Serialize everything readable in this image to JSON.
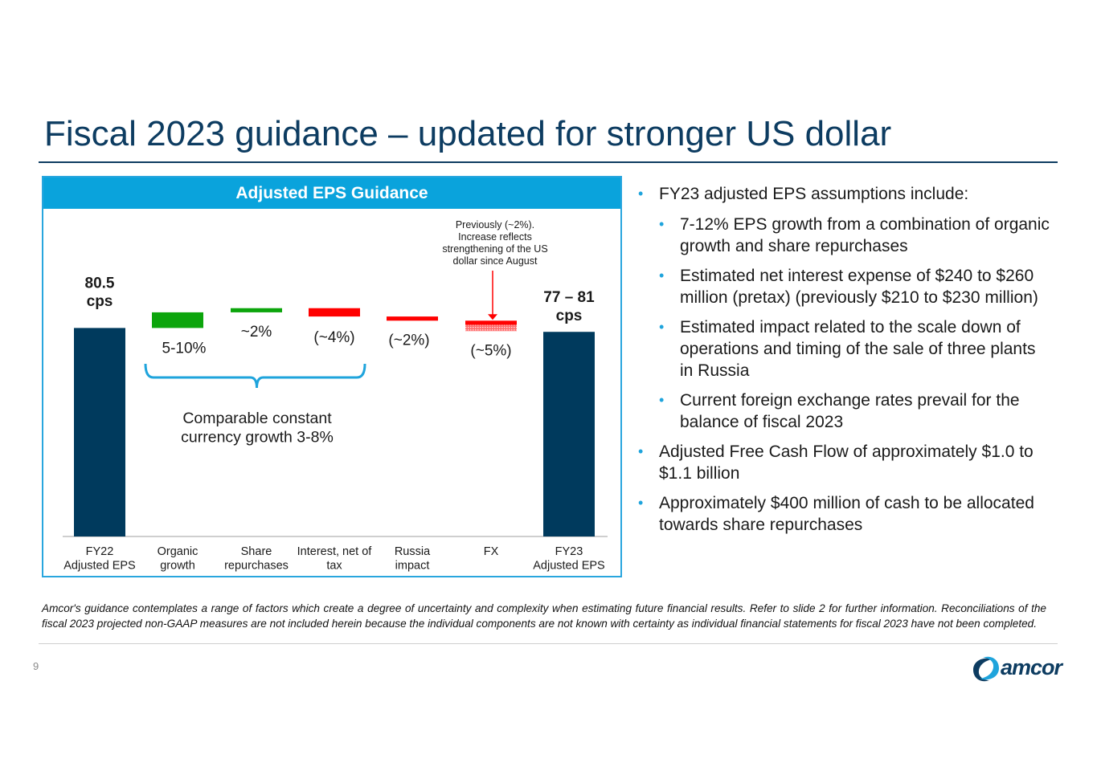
{
  "slide": {
    "title": "Fiscal 2023 guidance – updated for stronger US dollar",
    "page_number": "9"
  },
  "chart_panel": {
    "header": "Adjusted EPS Guidance"
  },
  "chart_data": {
    "type": "bar",
    "subtype": "waterfall",
    "title": "Adjusted EPS Guidance",
    "categories": [
      "FY22\nAdjusted EPS",
      "Organic\ngrowth",
      "Share\nrepurchases",
      "Interest, net of\ntax",
      "Russia\nimpact",
      "FX",
      "FY23\nAdjusted EPS"
    ],
    "bars": [
      {
        "kind": "total",
        "label": "80.5\ncps",
        "value": 80.5,
        "color": "#003a5d"
      },
      {
        "kind": "increase",
        "label": "5-10%",
        "pct": 7.5,
        "color": "#0ca50c"
      },
      {
        "kind": "increase",
        "label": "~2%",
        "pct": 2,
        "color": "#0ca50c"
      },
      {
        "kind": "decrease",
        "label": "(~4%)",
        "pct": -4,
        "color": "#ff0000"
      },
      {
        "kind": "decrease",
        "label": "(~2%)",
        "pct": -2,
        "color": "#ff0000"
      },
      {
        "kind": "decrease",
        "label": "(~5%)",
        "pct": -5,
        "color": "#ff0000",
        "hatched_portion_pct": -3
      },
      {
        "kind": "total",
        "label": "77 – 81\ncps",
        "range": [
          77,
          81
        ],
        "color": "#003a5d"
      }
    ],
    "annotations": {
      "fx_note": "Previously (~2%).\nIncrease reflects\nstrengthening of the US\ndollar since August",
      "bracket_label": "Comparable constant\ncurrency growth 3-8%"
    },
    "colors": {
      "bracket": "#1fa4dc",
      "axis": "#bfbfbf"
    }
  },
  "bullets": [
    {
      "level": 1,
      "text": "FY23 adjusted EPS assumptions include:"
    },
    {
      "level": 2,
      "text": "7-12% EPS growth from a combination of organic growth and share repurchases"
    },
    {
      "level": 2,
      "text": "Estimated net interest expense of $240 to $260 million (pretax) (previously $210 to $230 million)"
    },
    {
      "level": 2,
      "text": "Estimated impact related to the scale down of operations and timing of the sale of three plants in Russia"
    },
    {
      "level": 2,
      "text": "Current foreign exchange rates prevail for the balance of fiscal 2023"
    },
    {
      "level": 1,
      "text": "Adjusted Free Cash Flow of approximately $1.0 to $1.1 billion"
    },
    {
      "level": 1,
      "text": "Approximately $400 million of cash to be allocated towards share repurchases"
    }
  ],
  "disclaimer": "Amcor's guidance contemplates a range of factors which create a degree of uncertainty and complexity when estimating future financial results.  Refer to slide 2 for further information. Reconciliations of the fiscal 2023 projected non-GAAP measures are not included herein because the individual components are not known with certainty as individual financial statements for fiscal 2023 have not been completed.",
  "logo": {
    "text": "amcor",
    "colors": {
      "dark": "#0d3c61",
      "light": "#1fa4dc"
    }
  }
}
